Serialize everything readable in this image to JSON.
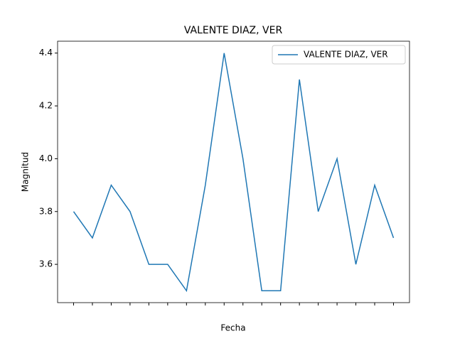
{
  "chart_data": {
    "type": "line",
    "title": "VALENTE DIAZ, VER",
    "x_label": "Fecha",
    "y_label": "Magnitud",
    "categories": [
      null,
      null,
      null,
      null,
      null,
      null,
      null,
      null,
      null,
      null,
      null,
      null,
      null,
      null,
      null,
      null,
      null,
      null
    ],
    "series": [
      {
        "name": "VALENTE DIAZ, VER",
        "color": "#1f77b4",
        "values": [
          3.8,
          3.7,
          3.9,
          3.8,
          3.6,
          3.6,
          3.5,
          3.9,
          4.4,
          4.0,
          3.5,
          3.5,
          4.3,
          3.8,
          4.0,
          3.6,
          3.9,
          3.7
        ]
      }
    ],
    "ylim": [
      3.455,
      4.445
    ],
    "yticks": [
      3.6,
      3.8,
      {
        "value": 4,
        "label": "4.0"
      },
      4.2,
      4.4
    ],
    "legend": "upper right",
    "grid": false
  }
}
